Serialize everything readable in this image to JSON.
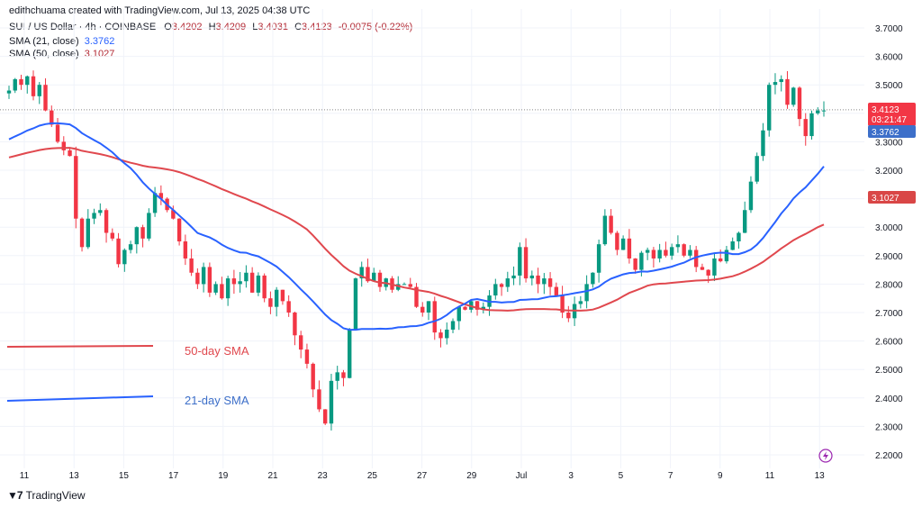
{
  "header": {
    "attribution": "edithchuama created with TradingView.com, Jul 13, 2025 04:38 UTC"
  },
  "legend": {
    "symbol": "SUI / US Dollar · 4h · COINBASE",
    "ohlc": {
      "o_label": "O",
      "o": "3.4202",
      "h_label": "H",
      "h": "3.4209",
      "l_label": "L",
      "l": "3.4031",
      "c_label": "C",
      "c": "3.4123",
      "change": "-0.0075 (-0.22%)"
    },
    "sma21_label": "SMA (21, close)",
    "sma21_value": "3.3762",
    "sma50_label": "SMA (50, close)",
    "sma50_value": "3.1027"
  },
  "annotations": {
    "sma50_text": "50-day SMA",
    "sma21_text": "21-day SMA"
  },
  "price_tags": {
    "last": "3.4123",
    "countdown": "03:21:47",
    "sma21": "3.3762",
    "sma50": "3.1027"
  },
  "footer": {
    "brand": "TradingView"
  },
  "colors": {
    "up": "#089981",
    "down": "#f23645",
    "sma21": "#2962ff",
    "sma50": "#e0484e",
    "sma21_tag": "#3d6fc9",
    "sma50_tag": "#d94646"
  },
  "chart_data": {
    "type": "candlestick",
    "title": "SUI / US Dollar · 4h · COINBASE",
    "ylim": [
      2.15,
      3.72
    ],
    "y_ticks": [
      "3.7000",
      "3.6000",
      "3.5000",
      "3.4000",
      "3.3000",
      "3.2000",
      "3.1000",
      "3.0000",
      "2.9000",
      "2.8000",
      "2.7000",
      "2.6000",
      "2.5000",
      "2.4000",
      "2.3000",
      "2.2000"
    ],
    "x_tick_labels": [
      "11",
      "13",
      "15",
      "17",
      "19",
      "21",
      "23",
      "25",
      "27",
      "29",
      "Jul",
      "3",
      "5",
      "7",
      "9",
      "11",
      "13"
    ],
    "x_tick_days": [
      0,
      2,
      4,
      6,
      8,
      10,
      12,
      14,
      16,
      18,
      20,
      22,
      24,
      26,
      28,
      30,
      32
    ],
    "candles_close": [
      3.48,
      3.52,
      3.5,
      3.53,
      3.46,
      3.5,
      3.41,
      3.36,
      3.3,
      3.27,
      3.25,
      3.03,
      2.93,
      3.03,
      3.05,
      3.06,
      2.98,
      2.96,
      2.87,
      2.92,
      2.94,
      3.0,
      2.96,
      3.05,
      3.12,
      3.1,
      3.06,
      3.03,
      2.95,
      2.89,
      2.84,
      2.8,
      2.86,
      2.77,
      2.8,
      2.75,
      2.82,
      2.8,
      2.81,
      2.84,
      2.77,
      2.83,
      2.75,
      2.72,
      2.78,
      2.74,
      2.7,
      2.62,
      2.57,
      2.52,
      2.43,
      2.36,
      2.31,
      2.46,
      2.49,
      2.47,
      2.64,
      2.82,
      2.86,
      2.81,
      2.84,
      2.79,
      2.82,
      2.78,
      2.8,
      2.8,
      2.79,
      2.72,
      2.7,
      2.74,
      2.63,
      2.61,
      2.64,
      2.67,
      2.72,
      2.71,
      2.74,
      2.71,
      2.72,
      2.76,
      2.8,
      2.79,
      2.82,
      2.83,
      2.93,
      2.82,
      2.83,
      2.8,
      2.82,
      2.79,
      2.76,
      2.7,
      2.68,
      2.73,
      2.74,
      2.8,
      2.84,
      2.94,
      3.04,
      2.98,
      2.92,
      2.96,
      2.89,
      2.85,
      2.91,
      2.92,
      2.89,
      2.92,
      2.9,
      2.93,
      2.94,
      2.9,
      2.92,
      2.86,
      2.85,
      2.83,
      2.89,
      2.88,
      2.92,
      2.95,
      2.98,
      3.06,
      3.16,
      3.25,
      3.34,
      3.5,
      3.51,
      3.52,
      3.43,
      3.49,
      3.38,
      3.32,
      3.4,
      3.41,
      3.41
    ],
    "sma21_close_endpoints": {
      "start": 3.3,
      "end": 3.3762
    },
    "sma50_close_endpoints": {
      "start": 3.24,
      "end": 3.1027
    },
    "last_price": 3.4123
  }
}
